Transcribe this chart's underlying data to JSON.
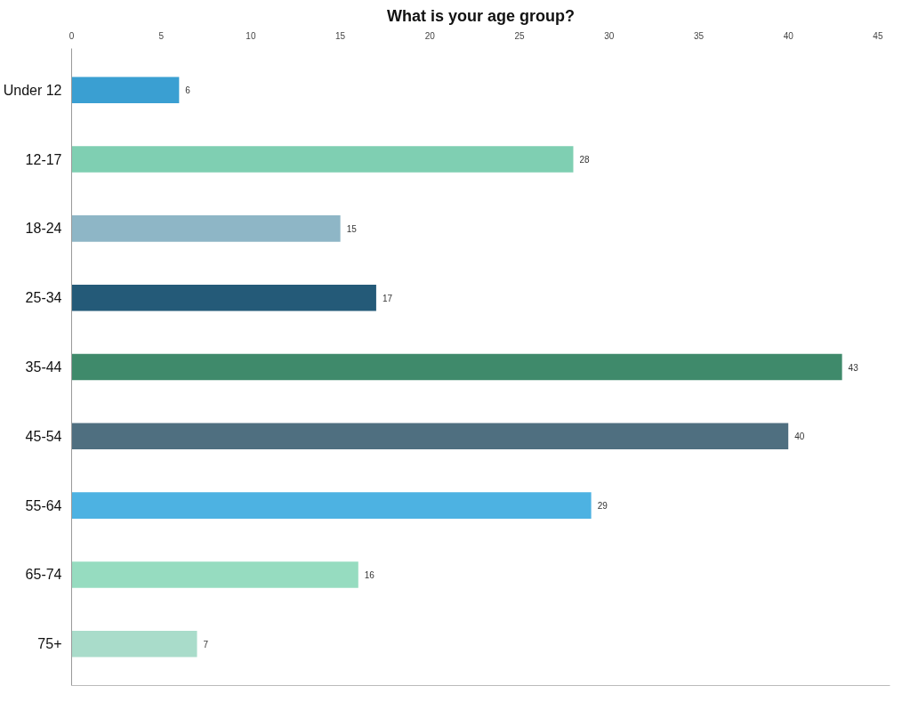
{
  "chart_data": {
    "type": "bar",
    "orientation": "horizontal",
    "title": "What is your age group?",
    "categories": [
      "Under 12",
      "12-17",
      "18-24",
      "25-34",
      "35-44",
      "45-54",
      "55-64",
      "65-74",
      "75+"
    ],
    "values": [
      6,
      28,
      15,
      17,
      43,
      40,
      29,
      16,
      7
    ],
    "colors": [
      "#3a9fd2",
      "#7fcfb2",
      "#8eb6c6",
      "#245a78",
      "#3f8a6b",
      "#4f6f80",
      "#4db2e2",
      "#96dcc0",
      "#a9dcca"
    ],
    "xlim": [
      0,
      45
    ],
    "xticks": [
      0,
      5,
      10,
      15,
      20,
      25,
      30,
      35,
      40,
      45
    ],
    "data_labels": true,
    "grid": false
  }
}
